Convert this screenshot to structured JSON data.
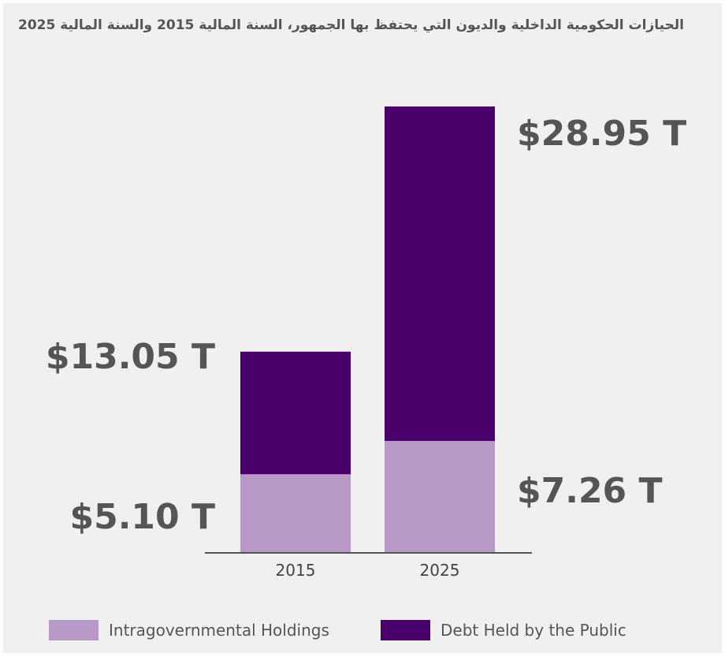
{
  "chart_data": {
    "type": "bar",
    "stacked": true,
    "title": "الحيازات الحكومية الداخلية والديون التي يحتفظ بها الجمهور، السنة المالية 2015 والسنة المالية 2025",
    "categories": [
      "2015",
      "2025"
    ],
    "series": [
      {
        "name": "Intragovernmental Holdings",
        "color": "#b799c8",
        "values": [
          5.1,
          7.26
        ]
      },
      {
        "name": "Debt Held by the Public",
        "color": "#4a006b",
        "values": [
          7.95,
          21.69
        ]
      }
    ],
    "labels": {
      "2015": {
        "total": "$13.05 T",
        "intragovernmental": "$5.10 T"
      },
      "2025": {
        "total": "$28.95 T",
        "intragovernmental": "$7.26 T"
      }
    },
    "ylim": [
      0,
      28.95
    ],
    "grid": false,
    "legend_position": "bottom"
  }
}
